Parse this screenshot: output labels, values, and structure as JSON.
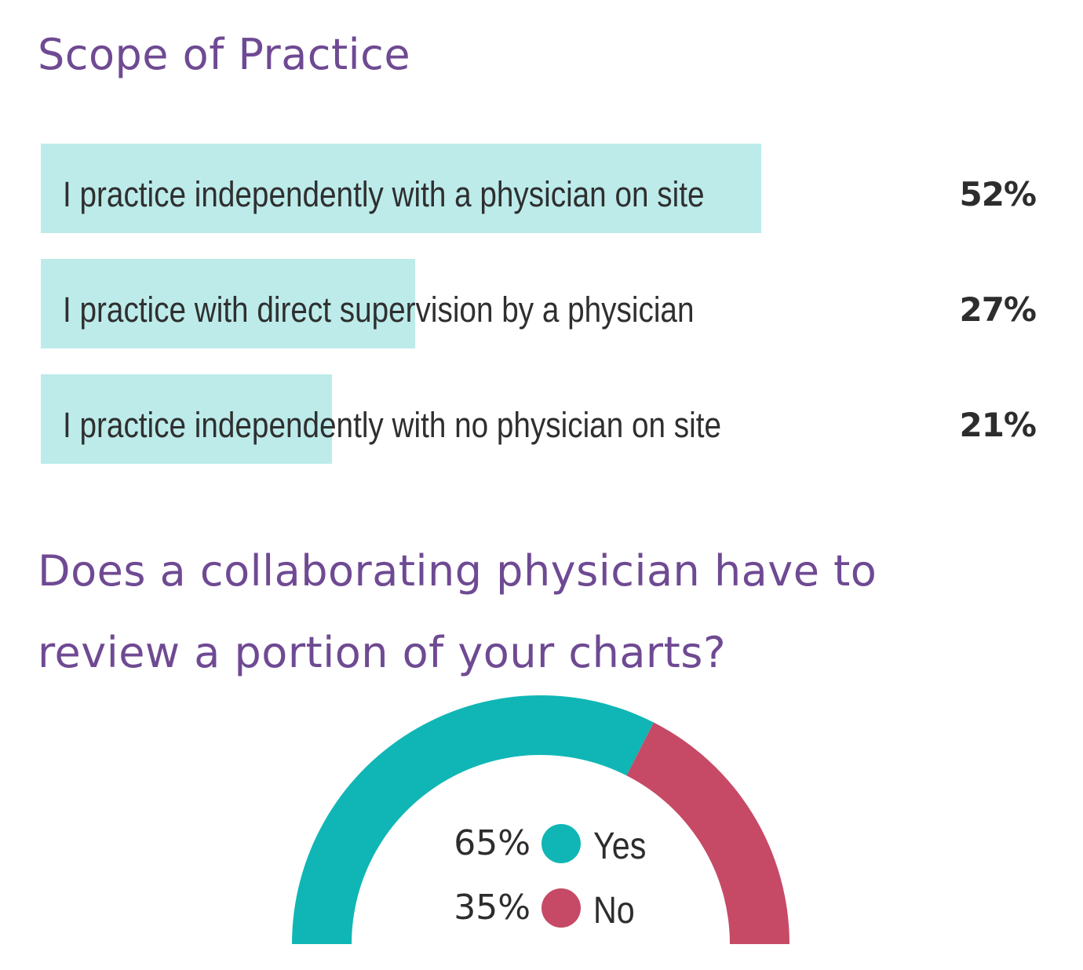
{
  "section1": {
    "title": "Scope of Practice"
  },
  "section2": {
    "title": "Does a collaborating physician have to review a portion of your charts?"
  },
  "colors": {
    "title": "#6f4a93",
    "bar": "#bcebea",
    "yes": "#10b6b5",
    "no": "#c64a66",
    "text": "#2d2d2d"
  },
  "chart_data": [
    {
      "type": "bar",
      "orientation": "horizontal",
      "title": "Scope of Practice",
      "categories": [
        "I practice independently with a physician on site",
        "I practice with direct supervision by a physician",
        "I practice independently with no physician on site"
      ],
      "values": [
        52,
        27,
        21
      ],
      "value_labels": [
        "52%",
        "27%",
        "21%"
      ],
      "xlabel": "",
      "ylabel": "",
      "xlim": [
        0,
        100
      ],
      "grid": false,
      "legend": "none"
    },
    {
      "type": "pie",
      "variant": "semi-donut gauge",
      "title": "Does a collaborating physician have to review a portion of your charts?",
      "categories": [
        "Yes",
        "No"
      ],
      "values": [
        65,
        35
      ],
      "value_labels": [
        "65%",
        "35%"
      ],
      "colors": [
        "#10b6b5",
        "#c64a66"
      ],
      "legend": "center"
    }
  ]
}
